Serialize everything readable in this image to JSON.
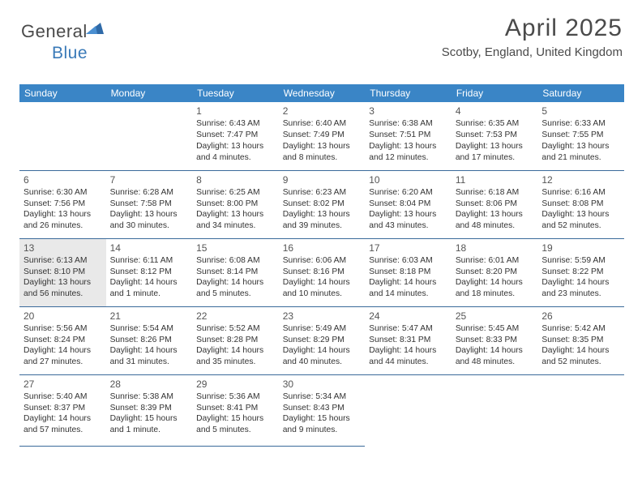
{
  "logo": {
    "part1": "General",
    "part2": "Blue"
  },
  "title": "April 2025",
  "location": "Scotby, England, United Kingdom",
  "colors": {
    "header_bg": "#3a85c6",
    "header_text": "#ffffff",
    "border": "#3a6a9a",
    "logo_gray": "#5a5a5a",
    "logo_blue": "#3a7ab8",
    "today_bg": "#e9e9e9"
  },
  "typography": {
    "title_fontsize": 30,
    "location_fontsize": 15,
    "dayheader_fontsize": 12,
    "cell_fontsize": 10.3
  },
  "day_headers": [
    "Sunday",
    "Monday",
    "Tuesday",
    "Wednesday",
    "Thursday",
    "Friday",
    "Saturday"
  ],
  "first_day_column": 2,
  "highlight_day": 13,
  "days": [
    {
      "n": 1,
      "sunrise": "6:43 AM",
      "sunset": "7:47 PM",
      "daylight": "13 hours and 4 minutes."
    },
    {
      "n": 2,
      "sunrise": "6:40 AM",
      "sunset": "7:49 PM",
      "daylight": "13 hours and 8 minutes."
    },
    {
      "n": 3,
      "sunrise": "6:38 AM",
      "sunset": "7:51 PM",
      "daylight": "13 hours and 12 minutes."
    },
    {
      "n": 4,
      "sunrise": "6:35 AM",
      "sunset": "7:53 PM",
      "daylight": "13 hours and 17 minutes."
    },
    {
      "n": 5,
      "sunrise": "6:33 AM",
      "sunset": "7:55 PM",
      "daylight": "13 hours and 21 minutes."
    },
    {
      "n": 6,
      "sunrise": "6:30 AM",
      "sunset": "7:56 PM",
      "daylight": "13 hours and 26 minutes."
    },
    {
      "n": 7,
      "sunrise": "6:28 AM",
      "sunset": "7:58 PM",
      "daylight": "13 hours and 30 minutes."
    },
    {
      "n": 8,
      "sunrise": "6:25 AM",
      "sunset": "8:00 PM",
      "daylight": "13 hours and 34 minutes."
    },
    {
      "n": 9,
      "sunrise": "6:23 AM",
      "sunset": "8:02 PM",
      "daylight": "13 hours and 39 minutes."
    },
    {
      "n": 10,
      "sunrise": "6:20 AM",
      "sunset": "8:04 PM",
      "daylight": "13 hours and 43 minutes."
    },
    {
      "n": 11,
      "sunrise": "6:18 AM",
      "sunset": "8:06 PM",
      "daylight": "13 hours and 48 minutes."
    },
    {
      "n": 12,
      "sunrise": "6:16 AM",
      "sunset": "8:08 PM",
      "daylight": "13 hours and 52 minutes."
    },
    {
      "n": 13,
      "sunrise": "6:13 AM",
      "sunset": "8:10 PM",
      "daylight": "13 hours and 56 minutes."
    },
    {
      "n": 14,
      "sunrise": "6:11 AM",
      "sunset": "8:12 PM",
      "daylight": "14 hours and 1 minute."
    },
    {
      "n": 15,
      "sunrise": "6:08 AM",
      "sunset": "8:14 PM",
      "daylight": "14 hours and 5 minutes."
    },
    {
      "n": 16,
      "sunrise": "6:06 AM",
      "sunset": "8:16 PM",
      "daylight": "14 hours and 10 minutes."
    },
    {
      "n": 17,
      "sunrise": "6:03 AM",
      "sunset": "8:18 PM",
      "daylight": "14 hours and 14 minutes."
    },
    {
      "n": 18,
      "sunrise": "6:01 AM",
      "sunset": "8:20 PM",
      "daylight": "14 hours and 18 minutes."
    },
    {
      "n": 19,
      "sunrise": "5:59 AM",
      "sunset": "8:22 PM",
      "daylight": "14 hours and 23 minutes."
    },
    {
      "n": 20,
      "sunrise": "5:56 AM",
      "sunset": "8:24 PM",
      "daylight": "14 hours and 27 minutes."
    },
    {
      "n": 21,
      "sunrise": "5:54 AM",
      "sunset": "8:26 PM",
      "daylight": "14 hours and 31 minutes."
    },
    {
      "n": 22,
      "sunrise": "5:52 AM",
      "sunset": "8:28 PM",
      "daylight": "14 hours and 35 minutes."
    },
    {
      "n": 23,
      "sunrise": "5:49 AM",
      "sunset": "8:29 PM",
      "daylight": "14 hours and 40 minutes."
    },
    {
      "n": 24,
      "sunrise": "5:47 AM",
      "sunset": "8:31 PM",
      "daylight": "14 hours and 44 minutes."
    },
    {
      "n": 25,
      "sunrise": "5:45 AM",
      "sunset": "8:33 PM",
      "daylight": "14 hours and 48 minutes."
    },
    {
      "n": 26,
      "sunrise": "5:42 AM",
      "sunset": "8:35 PM",
      "daylight": "14 hours and 52 minutes."
    },
    {
      "n": 27,
      "sunrise": "5:40 AM",
      "sunset": "8:37 PM",
      "daylight": "14 hours and 57 minutes."
    },
    {
      "n": 28,
      "sunrise": "5:38 AM",
      "sunset": "8:39 PM",
      "daylight": "15 hours and 1 minute."
    },
    {
      "n": 29,
      "sunrise": "5:36 AM",
      "sunset": "8:41 PM",
      "daylight": "15 hours and 5 minutes."
    },
    {
      "n": 30,
      "sunrise": "5:34 AM",
      "sunset": "8:43 PM",
      "daylight": "15 hours and 9 minutes."
    }
  ],
  "labels": {
    "sunrise": "Sunrise: ",
    "sunset": "Sunset: ",
    "daylight": "Daylight: "
  }
}
